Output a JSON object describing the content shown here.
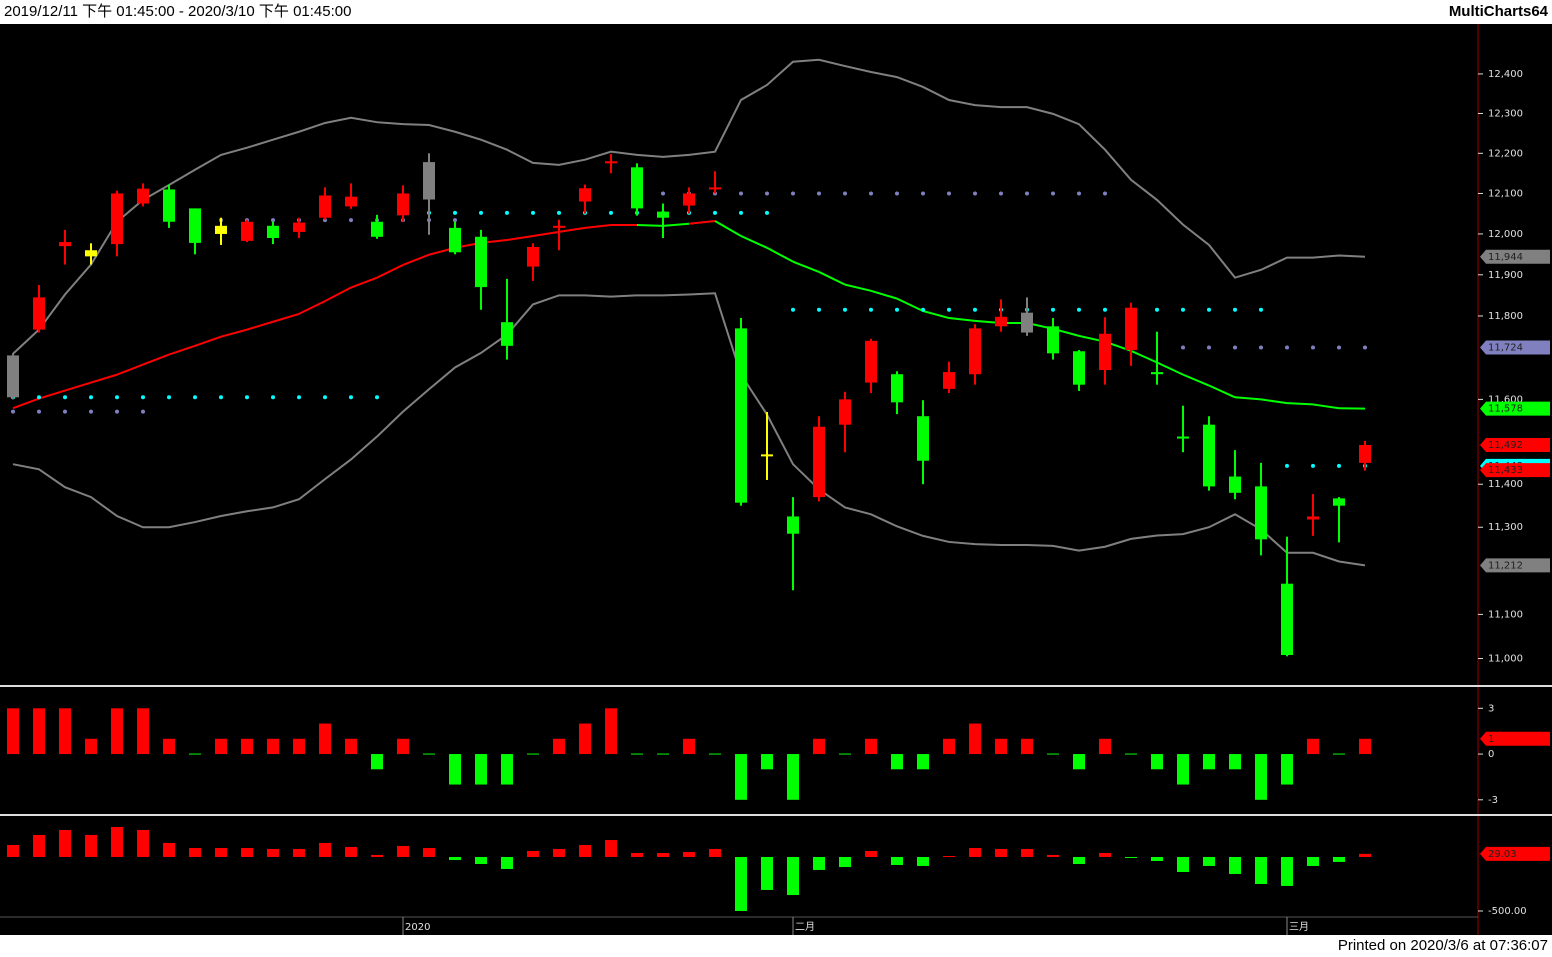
{
  "header": {
    "range": "2019/12/11 下午 01:45:00 - 2020/3/10 下午 01:45:00",
    "product": "MultiCharts64"
  },
  "footer": "Printed on 2020/3/6 at 07:36:07",
  "chart_data": [
    {
      "type": "candlestick",
      "log": true,
      "categories": [
        null,
        null,
        null,
        null,
        null,
        null,
        null,
        null,
        null,
        null,
        null,
        null,
        null,
        null,
        null,
        "2020",
        null,
        null,
        null,
        null,
        null,
        null,
        null,
        null,
        null,
        null,
        null,
        null,
        null,
        null,
        "二月",
        null,
        null,
        null,
        null,
        null,
        null,
        null,
        null,
        null,
        null,
        null,
        null,
        null,
        null,
        null,
        null,
        null,
        null,
        "三月",
        null,
        null,
        null
      ],
      "open": [
        11705,
        11767,
        11970,
        11960,
        11975,
        12075,
        12110,
        12063,
        12020,
        11983,
        12020,
        12005,
        12040,
        12068,
        12030,
        12046,
        12085,
        12015,
        11993,
        11785,
        11920,
        12015,
        12080,
        12175,
        12165,
        12055,
        12070,
        12110,
        11770,
        11470,
        11325,
        11370,
        11540,
        11640,
        11660,
        11560,
        11625,
        11660,
        11775,
        11808,
        11775,
        11715,
        11670,
        11718,
        11665,
        11512,
        11540,
        11418,
        11395,
        11170,
        11318,
        11367,
        11450
      ],
      "high": [
        11710,
        11875,
        12010,
        11977,
        12107,
        12125,
        12122,
        12063,
        12040,
        12035,
        12030,
        12040,
        12115,
        12125,
        12047,
        12120,
        12200,
        12030,
        12010,
        11890,
        11977,
        12035,
        12122,
        12198,
        12175,
        12075,
        12115,
        12155,
        11795,
        11570,
        11370,
        11560,
        11618,
        11745,
        11667,
        11598,
        11690,
        11780,
        11840,
        11845,
        11795,
        11718,
        11797,
        11832,
        11762,
        11585,
        11560,
        11480,
        11450,
        11278,
        11377,
        11370,
        11502
      ],
      "low": [
        11600,
        11760,
        11925,
        11925,
        11945,
        12068,
        12015,
        11950,
        11973,
        11980,
        11975,
        11990,
        12035,
        12062,
        11988,
        12030,
        11998,
        11950,
        11815,
        11695,
        11885,
        11960,
        12050,
        12150,
        12045,
        11990,
        12050,
        12100,
        11350,
        11410,
        11155,
        11360,
        11475,
        11615,
        11565,
        11400,
        11615,
        11635,
        11762,
        11752,
        11695,
        11620,
        11635,
        11680,
        11635,
        11475,
        11385,
        11365,
        11235,
        11005,
        11280,
        11265,
        11432
      ],
      "close": [
        11605,
        11845,
        11980,
        11945,
        12100,
        12112,
        12030,
        11978,
        12000,
        12030,
        11990,
        12028,
        12095,
        12092,
        11993,
        12100,
        12178,
        11955,
        11870,
        11728,
        11968,
        12020,
        12113,
        12180,
        12063,
        12040,
        12100,
        12115,
        11357,
        11467,
        11285,
        11535,
        11600,
        11740,
        11593,
        11455,
        11665,
        11770,
        11798,
        11760,
        11710,
        11635,
        11757,
        11820,
        11660,
        11508,
        11395,
        11380,
        11272,
        11008,
        11325,
        11350,
        11492
      ],
      "colors": [
        "#808080",
        "#ff0000",
        "#ff0000",
        "#ffff00",
        "#ff0000",
        "#ff0000",
        "#00ff00",
        "#00ff00",
        "#ffff00",
        "#ff0000",
        "#00ff00",
        "#ff0000",
        "#ff0000",
        "#ff0000",
        "#00ff00",
        "#ff0000",
        "#808080",
        "#00ff00",
        "#00ff00",
        "#00ff00",
        "#ff0000",
        "#ff0000",
        "#ff0000",
        "#ff0000",
        "#00ff00",
        "#00ff00",
        "#ff0000",
        "#ff0000",
        "#00ff00",
        "#ffff00",
        "#00ff00",
        "#ff0000",
        "#ff0000",
        "#ff0000",
        "#00ff00",
        "#00ff00",
        "#ff0000",
        "#ff0000",
        "#ff0000",
        "#808080",
        "#00ff00",
        "#00ff00",
        "#ff0000",
        "#ff0000",
        "#00ff00",
        "#00ff00",
        "#00ff00",
        "#00ff00",
        "#00ff00",
        "#00ff00",
        "#ff0000",
        "#00ff00",
        "#ff0000"
      ],
      "lines": [
        {
          "color": "#808080",
          "values": [
            11709,
            11767,
            11852,
            11925,
            12030,
            12084,
            12121,
            12159,
            12196,
            12214,
            12234,
            12254,
            12276,
            12289,
            12278,
            12273,
            12271,
            12254,
            12234,
            12209,
            12176,
            12171,
            12184,
            12204,
            12196,
            12191,
            12196,
            12204,
            12334,
            12372,
            12431,
            12436,
            12420,
            12405,
            12392,
            12367,
            12334,
            12321,
            12316,
            12316,
            12299,
            12273,
            12209,
            12134,
            12084,
            12023,
            11973,
            11893,
            11912,
            11942,
            11942,
            11947,
            11944
          ]
        },
        {
          "color": "#808080",
          "values": [
            11447,
            11435,
            11393,
            11370,
            11326,
            11300,
            11300,
            11312,
            11326,
            11337,
            11346,
            11365,
            11412,
            11458,
            11512,
            11571,
            11624,
            11676,
            11711,
            11755,
            11828,
            11850,
            11850,
            11847,
            11850,
            11850,
            11852,
            11855,
            11659,
            11564,
            11447,
            11388,
            11346,
            11330,
            11302,
            11280,
            11266,
            11261,
            11259,
            11259,
            11257,
            11246,
            11255,
            11273,
            11281,
            11284,
            11300,
            11330,
            11295,
            11241,
            11241,
            11221,
            11212
          ]
        },
        {
          "colors": [
            "#ff0000",
            "#ff0000",
            "#ff0000",
            "#ff0000",
            "#ff0000",
            "#ff0000",
            "#ff0000",
            "#ff0000",
            "#ff0000",
            "#ff0000",
            "#ff0000",
            "#ff0000",
            "#ff0000",
            "#ff0000",
            "#ff0000",
            "#ff0000",
            "#ff0000",
            "#ff0000",
            "#ff0000",
            "#ff0000",
            "#ff0000",
            "#ff0000",
            "#ff0000",
            "#ff0000",
            "#ff0000",
            "#00ff00",
            "#00ff00",
            "#ff0000",
            "#00ff00",
            "#00ff00",
            "#00ff00",
            "#00ff00",
            "#00ff00",
            "#00ff00",
            "#00ff00",
            "#00ff00",
            "#00ff00",
            "#00ff00",
            "#00ff00",
            "#00ff00",
            "#00ff00",
            "#00ff00",
            "#00ff00",
            "#00ff00",
            "#00ff00",
            "#00ff00",
            "#00ff00",
            "#00ff00",
            "#00ff00",
            "#00ff00",
            "#00ff00",
            "#00ff00",
            "#00ff00"
          ],
          "values": [
            11579,
            11602,
            11621,
            11640,
            11659,
            11683,
            11707,
            11728,
            11750,
            11767,
            11786,
            11805,
            11836,
            11869,
            11893,
            11924,
            11949,
            11966,
            11978,
            11985,
            11995,
            12005,
            12015,
            12022,
            12022,
            12020,
            12025,
            12032,
            11995,
            11966,
            11932,
            11907,
            11876,
            11861,
            11842,
            11812,
            11795,
            11788,
            11783,
            11783,
            11769,
            11752,
            11738,
            11716,
            11688,
            11659,
            11633,
            11605,
            11600,
            11591,
            11588,
            11579,
            11578
          ]
        }
      ],
      "dots": [
        {
          "color": "#00ffff",
          "values": [
            11605,
            11605,
            11605,
            11605,
            11605,
            11605,
            11605,
            11605,
            11605,
            11605,
            11605,
            11605,
            11605,
            11605,
            11605,
            null,
            12052,
            12052,
            12052,
            12052,
            12052,
            12052,
            12052,
            12052,
            12052,
            12052,
            12052,
            12052,
            12052,
            12052,
            11815,
            11815,
            11815,
            11815,
            11815,
            11815,
            11815,
            11815,
            11815,
            11815,
            11815,
            11815,
            11815,
            11815,
            11815,
            11815,
            11815,
            11815,
            11815,
            11443,
            11443,
            11443,
            11443
          ]
        },
        {
          "color": "#8080c0",
          "values": [
            11571,
            11571,
            11571,
            11571,
            11571,
            11571,
            null,
            null,
            12034,
            12034,
            12034,
            12034,
            12034,
            12034,
            12034,
            12034,
            12034,
            12034,
            null,
            null,
            null,
            null,
            null,
            null,
            null,
            12100,
            12100,
            12100,
            12100,
            12100,
            12100,
            12100,
            12100,
            12100,
            12100,
            12100,
            12100,
            12100,
            12100,
            12100,
            12100,
            12100,
            12100,
            null,
            null,
            11724,
            11724,
            11724,
            11724,
            11724,
            11724,
            11724,
            11724
          ]
        }
      ],
      "ylim": [
        10945,
        12525
      ],
      "yticks": [
        {
          "value": 11000,
          "label": "11,000"
        },
        {
          "value": 11100,
          "label": "11,100"
        },
        {
          "value": 11300,
          "label": "11,300"
        },
        {
          "value": 11400,
          "label": "11,400"
        },
        {
          "value": 11600,
          "label": "11,600"
        },
        {
          "value": 11800,
          "label": "11,800"
        },
        {
          "value": 11900,
          "label": "11,900"
        },
        {
          "value": 12000,
          "label": "12,000"
        },
        {
          "value": 12100,
          "label": "12,100"
        },
        {
          "value": 12200,
          "label": "12,200"
        },
        {
          "value": 12300,
          "label": "12,300"
        },
        {
          "value": 12400,
          "label": "12,400"
        }
      ],
      "tags": [
        {
          "value": 11944,
          "label": "11,944",
          "color": "#808080"
        },
        {
          "value": 11724,
          "label": "11,724",
          "color": "#8080c0"
        },
        {
          "value": 11578,
          "label": "11,578",
          "color": "#00ff00"
        },
        {
          "value": 11492,
          "label": "11,492",
          "color": "#ff0000"
        },
        {
          "value": 11443,
          "label": "11,443",
          "color": "#00ffff"
        },
        {
          "value": 11433,
          "label": "11,433",
          "color": "#ff0000"
        },
        {
          "value": 11212,
          "label": "11,212",
          "color": "#808080"
        }
      ]
    },
    {
      "type": "bar",
      "pos_color": "#ff0000",
      "neg_color": "#00ff00",
      "values": [
        3,
        3,
        3,
        1,
        3,
        3,
        1,
        0,
        1,
        1,
        1,
        1,
        2,
        1,
        -1,
        1,
        0,
        -2,
        -2,
        -2,
        0,
        1,
        2,
        3,
        0,
        0,
        1,
        0,
        -3,
        -1,
        -3,
        1,
        0,
        1,
        -1,
        -1,
        1,
        2,
        1,
        1,
        0,
        -1,
        1,
        0,
        -1,
        -2,
        -1,
        -1,
        -3,
        -2,
        1,
        0,
        1
      ],
      "ylim": [
        -3.8,
        4.2
      ],
      "yticks": [
        3,
        0,
        -3
      ],
      "tags": [
        {
          "value": 1,
          "label": "1",
          "color": "#ff0000"
        }
      ]
    },
    {
      "type": "bar",
      "pos_color": "#ff0000",
      "neg_color": "#00ff00",
      "values": [
        111,
        204,
        250,
        204,
        278,
        250,
        130,
        83,
        83,
        83,
        74,
        74,
        130,
        93,
        19,
        102,
        83,
        -28,
        -65,
        -111,
        56,
        74,
        111,
        157,
        37,
        37,
        46,
        74,
        -500,
        -305,
        -352,
        -120,
        -93,
        56,
        -74,
        -83,
        9,
        83,
        74,
        74,
        19,
        -65,
        37,
        -9,
        -37,
        -139,
        -83,
        -157,
        -250,
        -268,
        -83,
        -46,
        29.03
      ],
      "ylim": [
        -537,
        361
      ],
      "yticks": [
        {
          "value": -500,
          "label": "-500.00"
        }
      ],
      "tags": [
        {
          "value": 29.03,
          "label": "29.03",
          "color": "#ff0000"
        }
      ]
    }
  ]
}
